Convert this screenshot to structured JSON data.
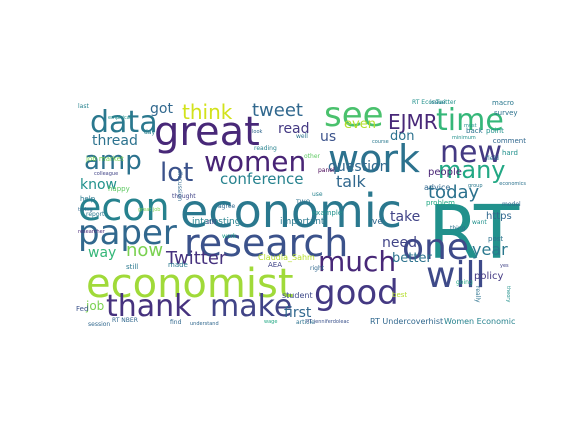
{
  "cloud": {
    "words": [
      {
        "text": "RT",
        "color": "#21918c",
        "rotate": false
      },
      {
        "text": "economic",
        "color": "#2a788e",
        "rotate": false
      },
      {
        "text": "economist",
        "color": "#a0da39",
        "rotate": false
      },
      {
        "text": "research",
        "color": "#3b528b",
        "rotate": false
      },
      {
        "text": "work",
        "color": "#2c728e",
        "rotate": false
      },
      {
        "text": "great",
        "color": "#482878",
        "rotate": false
      },
      {
        "text": "econ",
        "color": "#26828e",
        "rotate": false
      },
      {
        "text": "paper",
        "color": "#31688e",
        "rotate": false
      },
      {
        "text": "good",
        "color": "#443983",
        "rotate": false
      },
      {
        "text": "will",
        "color": "#3e4a89",
        "rotate": false
      },
      {
        "text": "one",
        "color": "#3e4a89",
        "rotate": false
      },
      {
        "text": "thank",
        "color": "#46327e",
        "rotate": false
      },
      {
        "text": "make",
        "color": "#414487",
        "rotate": false
      },
      {
        "text": "new",
        "color": "#443a83",
        "rotate": false
      },
      {
        "text": "time",
        "color": "#35b779",
        "rotate": false
      },
      {
        "text": "women",
        "color": "#482475",
        "rotate": false
      },
      {
        "text": "data",
        "color": "#2a788e",
        "rotate": false
      },
      {
        "text": "see",
        "color": "#4ac16d",
        "rotate": false
      },
      {
        "text": "amp",
        "color": "#2c728e",
        "rotate": false
      },
      {
        "text": "much",
        "color": "#482878",
        "rotate": false
      },
      {
        "text": "many",
        "color": "#22a884",
        "rotate": false
      },
      {
        "text": "lot",
        "color": "#3b528b",
        "rotate": false
      },
      {
        "text": "think",
        "color": "#d2e21b",
        "rotate": false
      },
      {
        "text": "Twitter",
        "color": "#46327e",
        "rotate": false
      },
      {
        "text": "now",
        "color": "#7ad151",
        "rotate": false
      },
      {
        "text": "EJMR",
        "color": "#482878",
        "rotate": false
      },
      {
        "text": "tweet",
        "color": "#31688e",
        "rotate": false
      },
      {
        "text": "today",
        "color": "#2c728e",
        "rotate": false
      },
      {
        "text": "year",
        "color": "#2a788e",
        "rotate": false
      },
      {
        "text": "conference",
        "color": "#26828e",
        "rotate": false
      },
      {
        "text": "thread",
        "color": "#2c728e",
        "rotate": false
      },
      {
        "text": "know",
        "color": "#21918c",
        "rotate": false
      },
      {
        "text": "way",
        "color": "#35b779",
        "rotate": false
      },
      {
        "text": "got",
        "color": "#31688e",
        "rotate": false
      },
      {
        "text": "read",
        "color": "#443983",
        "rotate": false
      },
      {
        "text": "us",
        "color": "#3b528b",
        "rotate": false
      },
      {
        "text": "even",
        "color": "#b5de2b",
        "rotate": false
      },
      {
        "text": "don",
        "color": "#2c728e",
        "rotate": false
      },
      {
        "text": "talk",
        "color": "#31688e",
        "rotate": false
      },
      {
        "text": "question",
        "color": "#31688e",
        "rotate": false
      },
      {
        "text": "take",
        "color": "#414487",
        "rotate": false
      },
      {
        "text": "need",
        "color": "#414487",
        "rotate": false
      },
      {
        "text": "better",
        "color": "#2c728e",
        "rotate": false
      },
      {
        "text": "first",
        "color": "#31688e",
        "rotate": false
      },
      {
        "text": "job",
        "color": "#7ad151",
        "rotate": false
      },
      {
        "text": "people",
        "color": "#482475",
        "rotate": false
      },
      {
        "text": "https",
        "color": "#31688e",
        "rotate": false
      },
      {
        "text": "policy",
        "color": "#443983",
        "rotate": false
      },
      {
        "text": "interesting",
        "color": "#26828e",
        "rotate": false
      },
      {
        "text": "important",
        "color": "#2a788e",
        "rotate": false
      },
      {
        "text": "Claudia_Sahm",
        "color": "#b5de2b",
        "rotate": false
      },
      {
        "text": "student",
        "color": "#3e4a89",
        "rotate": false
      },
      {
        "text": "advice",
        "color": "#31688e",
        "rotate": false
      },
      {
        "text": "RT Undercoverhist",
        "color": "#31688e",
        "rotate": false
      },
      {
        "text": "Women Economic",
        "color": "#26828e",
        "rotate": false
      },
      {
        "text": "job market",
        "color": "#7ad151",
        "rotate": false
      },
      {
        "text": "still",
        "color": "#2a788e",
        "rotate": false
      },
      {
        "text": "made",
        "color": "#2a788e",
        "rotate": false
      },
      {
        "text": "AEA",
        "color": "#414487",
        "rotate": false
      },
      {
        "text": "ve",
        "color": "#31688e",
        "rotate": false
      },
      {
        "text": "example",
        "color": "#21918c",
        "rotate": false
      },
      {
        "text": "problem",
        "color": "#22a884",
        "rotate": false
      },
      {
        "text": "best",
        "color": "#b5de2b",
        "rotate": false
      },
      {
        "text": "article",
        "color": "#2c728e",
        "rotate": false
      },
      {
        "text": "post",
        "color": "#2c728e",
        "rotate": false
      },
      {
        "text": "macro",
        "color": "#2a788e",
        "rotate": false
      },
      {
        "text": "survey",
        "color": "#2c728e",
        "rotate": false
      },
      {
        "text": "back",
        "color": "#2c728e",
        "rotate": false
      },
      {
        "text": "point",
        "color": "#21918c",
        "rotate": false
      },
      {
        "text": "comment",
        "color": "#31688e",
        "rotate": false
      },
      {
        "text": "hard",
        "color": "#21918c",
        "rotate": false
      },
      {
        "text": "issue",
        "color": "#2c728e",
        "rotate": false
      },
      {
        "text": "happy",
        "color": "#5ec962",
        "rotate": false
      },
      {
        "text": "help",
        "color": "#2a788e",
        "rotate": false
      },
      {
        "text": "agree",
        "color": "#31688e",
        "rotate": false
      },
      {
        "text": "thought",
        "color": "#414487",
        "rotate": false
      },
      {
        "text": "reading",
        "color": "#26828e",
        "rotate": false
      },
      {
        "text": "well",
        "color": "#2c728e",
        "rotate": false
      },
      {
        "text": "other",
        "color": "#5ec962",
        "rotate": false
      },
      {
        "text": "panel",
        "color": "#440154",
        "rotate": false
      },
      {
        "text": "session",
        "color": "#31688e",
        "rotate": false
      },
      {
        "text": "day",
        "color": "#26828e",
        "rotate": false
      },
      {
        "text": "Fed",
        "color": "#3b528b",
        "rotate": false
      },
      {
        "text": "discussion",
        "color": "#31688e",
        "rotate": false
      },
      {
        "text": "last",
        "color": "#26828e",
        "rotate": false
      },
      {
        "text": "thing",
        "color": "#2c728e",
        "rotate": false
      },
      {
        "text": "going",
        "color": "#22a884",
        "rotate": false
      },
      {
        "text": "model",
        "color": "#31688e",
        "rotate": false
      },
      {
        "text": "still",
        "color": "#414487",
        "rotate": false
      },
      {
        "text": "field",
        "color": "#2c728e",
        "rotate": false
      },
      {
        "text": "find",
        "color": "#31688e",
        "rotate": false
      },
      {
        "text": "want",
        "color": "#21918c",
        "rotate": false
      },
      {
        "text": "RT EconTwitter",
        "color": "#21918c",
        "rotate": false
      },
      {
        "text": "RT NBER",
        "color": "#31688e",
        "rotate": false
      },
      {
        "text": "report",
        "color": "#2a788e",
        "rotate": false
      },
      {
        "text": "TWO",
        "color": "#2c728e",
        "rotate": false
      },
      {
        "text": "RT jenniferdoleac",
        "color": "#3b528b",
        "rotate": false
      },
      {
        "text": "understand",
        "color": "#31688e",
        "rotate": false
      },
      {
        "text": "empirical",
        "color": "#21918c",
        "rotate": false
      },
      {
        "text": "theory",
        "color": "#21918c",
        "rotate": false
      },
      {
        "text": "really",
        "color": "#2c728e",
        "rotate": false
      },
      {
        "text": "work",
        "color": "#1f9e89",
        "rotate": false
      },
      {
        "text": "colleague",
        "color": "#414487",
        "rotate": false
      },
      {
        "text": "great job",
        "color": "#7ad151",
        "rotate": false
      },
      {
        "text": "trying",
        "color": "#31688e",
        "rotate": false
      },
      {
        "text": "researcher",
        "color": "#482878",
        "rotate": false
      },
      {
        "text": "economics",
        "color": "#2c728e",
        "rotate": false
      },
      {
        "text": "minimum",
        "color": "#21918c",
        "rotate": false
      },
      {
        "text": "course",
        "color": "#2a788e",
        "rotate": false
      },
      {
        "text": "group",
        "color": "#2a788e",
        "rotate": false
      },
      {
        "text": "use",
        "color": "#26828e",
        "rotate": false
      },
      {
        "text": "must",
        "color": "#21918c",
        "rotate": false
      },
      {
        "text": "right",
        "color": "#31688e",
        "rotate": false
      },
      {
        "text": "look",
        "color": "#31688e",
        "rotate": false
      },
      {
        "text": "yes",
        "color": "#414487",
        "rotate": false
      },
      {
        "text": "wage",
        "color": "#22a884",
        "rotate": false
      }
    ]
  }
}
